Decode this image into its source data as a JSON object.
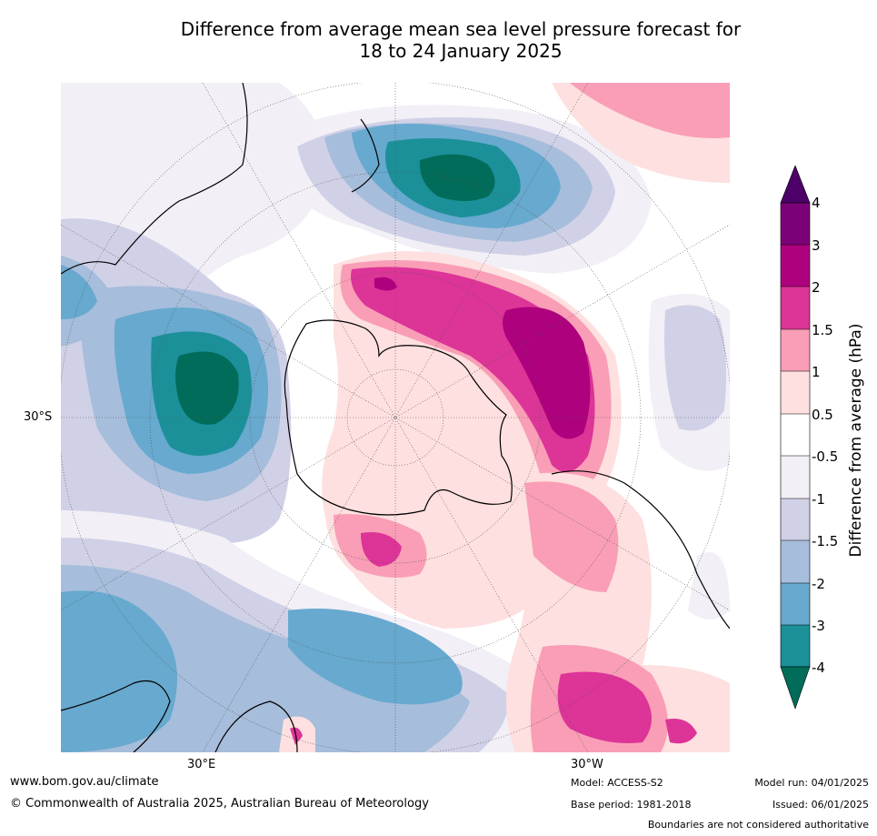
{
  "title": {
    "line1": "Difference from average mean sea level pressure forecast for",
    "line2": "18 to 24 January 2025"
  },
  "map": {
    "projection": "south polar stereographic",
    "labels": {
      "lat_30s": "30°S",
      "lon_30e": "30°E",
      "lon_30w": "30°W"
    },
    "colors": {
      "land_outline": "#000000",
      "graticule": "#555555",
      "boundary": "#888888"
    }
  },
  "colorbar": {
    "label": "Difference from average (hPa)",
    "ticks": [
      "4",
      "3",
      "2",
      "1.5",
      "1",
      "0.5",
      "-0.5",
      "-1",
      "-1.5",
      "-2",
      "-3",
      "-4"
    ],
    "bins_top_to_bottom": [
      {
        "range": ">4",
        "color": "#4d0068"
      },
      {
        "range": "3 to 4",
        "color": "#7a0177"
      },
      {
        "range": "2 to 3",
        "color": "#ae017e"
      },
      {
        "range": "1.5 to 2",
        "color": "#dd3497"
      },
      {
        "range": "1 to 1.5",
        "color": "#f99eb6"
      },
      {
        "range": "0.5 to 1",
        "color": "#fde0df"
      },
      {
        "range": "-0.5 to 0.5",
        "color": "#ffffff"
      },
      {
        "range": "-1 to -0.5",
        "color": "#f2eff6"
      },
      {
        "range": "-1.5 to -1",
        "color": "#d0d1e6"
      },
      {
        "range": "-2 to -1.5",
        "color": "#a6bddb"
      },
      {
        "range": "-3 to -2",
        "color": "#67a9cf"
      },
      {
        "range": "-4 to -3",
        "color": "#1c9099"
      },
      {
        "range": "<-4",
        "color": "#016c59"
      }
    ]
  },
  "footer": {
    "website": "www.bom.gov.au/climate",
    "copyright": "© Commonwealth of Australia 2025, Australian Bureau of Meteorology",
    "model": "Model: ACCESS-S2",
    "base_period": "Base period: 1981-2018",
    "model_run": "Model run: 04/01/2025",
    "issued": "Issued: 06/01/2025",
    "disclaimer": "Boundaries are not considered authoritative"
  }
}
